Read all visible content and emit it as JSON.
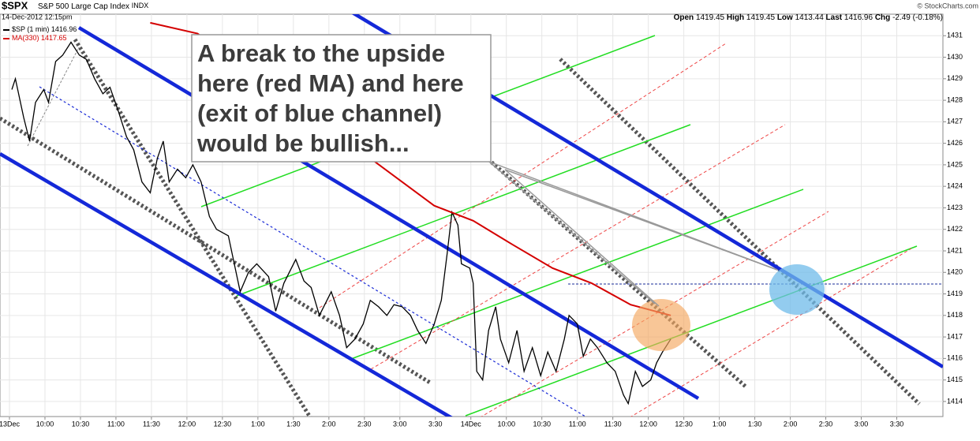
{
  "chart_data": {
    "type": "line",
    "title": "$SPX",
    "subtitle": "S&P 500 Large Cap Index",
    "exchange": "INDX",
    "date": "14-Dec-2012 12:15pm",
    "credit": "© StockCharts.com",
    "stats": {
      "open_label": "Open",
      "open": 1419.45,
      "high_label": "High",
      "high": 1419.45,
      "low_label": "Low",
      "low": 1413.44,
      "last_label": "Last",
      "last": 1416.96,
      "chg_label": "Chg",
      "chg": -2.49,
      "chg_pct": "(-0.18%)"
    },
    "annotation": [
      "A break to the upside",
      "here (red MA) and here",
      "(exit of blue channel)",
      "would be bullish..."
    ],
    "xlim": [
      -8,
      789
    ],
    "ylim": [
      1413.3,
      1432.0
    ],
    "grid": true,
    "xticks": [
      {
        "value": 0,
        "label": "13Dec"
      },
      {
        "value": 30,
        "label": "10:00"
      },
      {
        "value": 60,
        "label": "10:30"
      },
      {
        "value": 90,
        "label": "11:00"
      },
      {
        "value": 120,
        "label": "11:30"
      },
      {
        "value": 150,
        "label": "12:00"
      },
      {
        "value": 180,
        "label": "12:30"
      },
      {
        "value": 210,
        "label": "1:00"
      },
      {
        "value": 240,
        "label": "1:30"
      },
      {
        "value": 270,
        "label": "2:00"
      },
      {
        "value": 300,
        "label": "2:30"
      },
      {
        "value": 330,
        "label": "3:00"
      },
      {
        "value": 360,
        "label": "3:30"
      },
      {
        "value": 390,
        "label": "14Dec"
      },
      {
        "value": 420,
        "label": "10:00"
      },
      {
        "value": 450,
        "label": "10:30"
      },
      {
        "value": 480,
        "label": "11:00"
      },
      {
        "value": 510,
        "label": "11:30"
      },
      {
        "value": 540,
        "label": "12:00"
      },
      {
        "value": 570,
        "label": "12:30"
      },
      {
        "value": 600,
        "label": "1:00"
      },
      {
        "value": 630,
        "label": "1:30"
      },
      {
        "value": 660,
        "label": "2:00"
      },
      {
        "value": 690,
        "label": "2:30"
      },
      {
        "value": 720,
        "label": "3:00"
      },
      {
        "value": 750,
        "label": "3:30"
      }
    ],
    "yticks": [
      1414,
      1415,
      1416,
      1417,
      1418,
      1419,
      1420,
      1421,
      1422,
      1423,
      1424,
      1425,
      1426,
      1427,
      1428,
      1429,
      1430,
      1431
    ],
    "series": [
      {
        "name": "$SP (1 min)",
        "last": 1416.96,
        "color": "#000000",
        "x": [
          2,
          5,
          12,
          17,
          22,
          29,
          33,
          39,
          45,
          52,
          59,
          65,
          72,
          79,
          85,
          92,
          99,
          105,
          112,
          119,
          125,
          130,
          135,
          142,
          149,
          155,
          162,
          169,
          175,
          185,
          195,
          202,
          209,
          219,
          225,
          232,
          242,
          249,
          255,
          262,
          272,
          279,
          285,
          292,
          299,
          305,
          312,
          319,
          325,
          332,
          339,
          345,
          352,
          359,
          365,
          370,
          374,
          379,
          382,
          389,
          392,
          395,
          400,
          405,
          411,
          415,
          422,
          429,
          435,
          442,
          449,
          455,
          462,
          469,
          473,
          480,
          485,
          491,
          497,
          505,
          512,
          519,
          523,
          529,
          535,
          542,
          547,
          552,
          559
        ],
        "values": [
          1428.5,
          1429.0,
          1427.2,
          1426.1,
          1427.9,
          1428.5,
          1427.9,
          1429.8,
          1430.1,
          1430.7,
          1430.1,
          1429.9,
          1429.0,
          1428.3,
          1428.6,
          1427.5,
          1426.3,
          1425.7,
          1424.2,
          1423.7,
          1425.3,
          1426.1,
          1424.2,
          1424.8,
          1424.4,
          1425.0,
          1424.2,
          1422.6,
          1422.0,
          1421.7,
          1419.1,
          1420.0,
          1420.4,
          1419.8,
          1418.2,
          1419.5,
          1420.6,
          1419.6,
          1419.3,
          1418.0,
          1419.1,
          1418.0,
          1416.5,
          1416.9,
          1417.6,
          1418.7,
          1418.4,
          1418.0,
          1418.5,
          1418.4,
          1418.0,
          1417.3,
          1416.7,
          1417.6,
          1418.7,
          1420.9,
          1422.8,
          1422.2,
          1420.4,
          1420.2,
          1419.5,
          1415.4,
          1415.0,
          1417.3,
          1418.4,
          1416.9,
          1415.8,
          1417.3,
          1415.4,
          1416.5,
          1415.2,
          1416.3,
          1415.4,
          1416.9,
          1418.0,
          1417.6,
          1416.1,
          1416.9,
          1416.5,
          1415.8,
          1415.4,
          1414.3,
          1413.9,
          1415.4,
          1414.7,
          1415.0,
          1415.8,
          1416.3,
          1416.9
        ]
      },
      {
        "name": "MA(330)",
        "last": 1417.65,
        "color": "#d40000",
        "x": [
          119,
          159,
          305,
          359,
          392,
          425,
          459,
          492,
          525,
          559
        ],
        "values": [
          1431.6,
          1431.1,
          1425.3,
          1423.1,
          1422.4,
          1421.3,
          1420.2,
          1419.5,
          1418.5,
          1418.0
        ]
      }
    ]
  }
}
